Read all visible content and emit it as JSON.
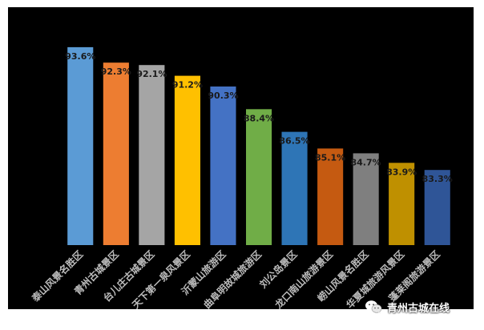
{
  "chart_data": {
    "type": "bar",
    "categories": [
      "泰山风景名胜区",
      "青州古城景区",
      "台儿庄古城景区",
      "天下第一泉风景区",
      "沂蒙山旅游区",
      "曲阜明故城旅游区",
      "刘公岛景区",
      "龙口南山旅游景区",
      "崂山风景名胜区",
      "华夏城旅游风景区",
      "蓬莱阁旅游景区"
    ],
    "values": [
      93.6,
      92.3,
      92.1,
      91.2,
      90.3,
      88.4,
      86.5,
      85.1,
      84.7,
      83.9,
      83.3
    ],
    "value_labels": [
      "93.6%",
      "92.3%",
      "92.1%",
      "91.2%",
      "90.3%",
      "88.4%",
      "86.5%",
      "85.1%",
      "84.7%",
      "83.9%",
      "83.3%"
    ],
    "colors": [
      "#5b9bd5",
      "#ed7d31",
      "#a5a5a5",
      "#ffc000",
      "#4472c4",
      "#70ad47",
      "#2e75b6",
      "#c55a11",
      "#7f7f7f",
      "#bf9000",
      "#2f5597"
    ],
    "ylim": [
      77.0,
      94.6
    ],
    "grid": false,
    "title": "",
    "xlabel": "",
    "ylabel": ""
  },
  "watermark": {
    "icon": "wechat-icon",
    "text": "青州古城在线"
  }
}
